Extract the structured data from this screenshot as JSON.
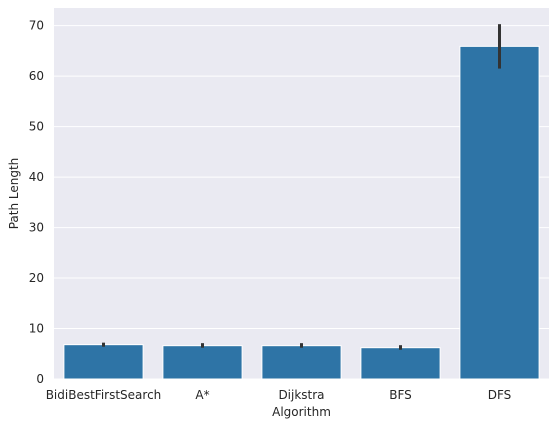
{
  "chart_data": {
    "type": "bar",
    "title": "",
    "xlabel": "Algorithm",
    "ylabel": "Path Length",
    "categories": [
      "BidiBestFirstSearch",
      "A*",
      "Dijkstra",
      "BFS",
      "DFS"
    ],
    "values": [
      6.8,
      6.6,
      6.6,
      6.2,
      65.9
    ],
    "error_low": [
      6.4,
      6.2,
      6.2,
      5.8,
      61.5
    ],
    "error_high": [
      7.2,
      7.1,
      7.1,
      6.7,
      70.3
    ],
    "ylim": [
      0,
      73.5
    ],
    "yticks": [
      0,
      10,
      20,
      30,
      40,
      50,
      60,
      70
    ],
    "grid": true,
    "bar_color": "#2e74a6",
    "error_color": "#333333",
    "background_color": "#eaeaf2"
  }
}
